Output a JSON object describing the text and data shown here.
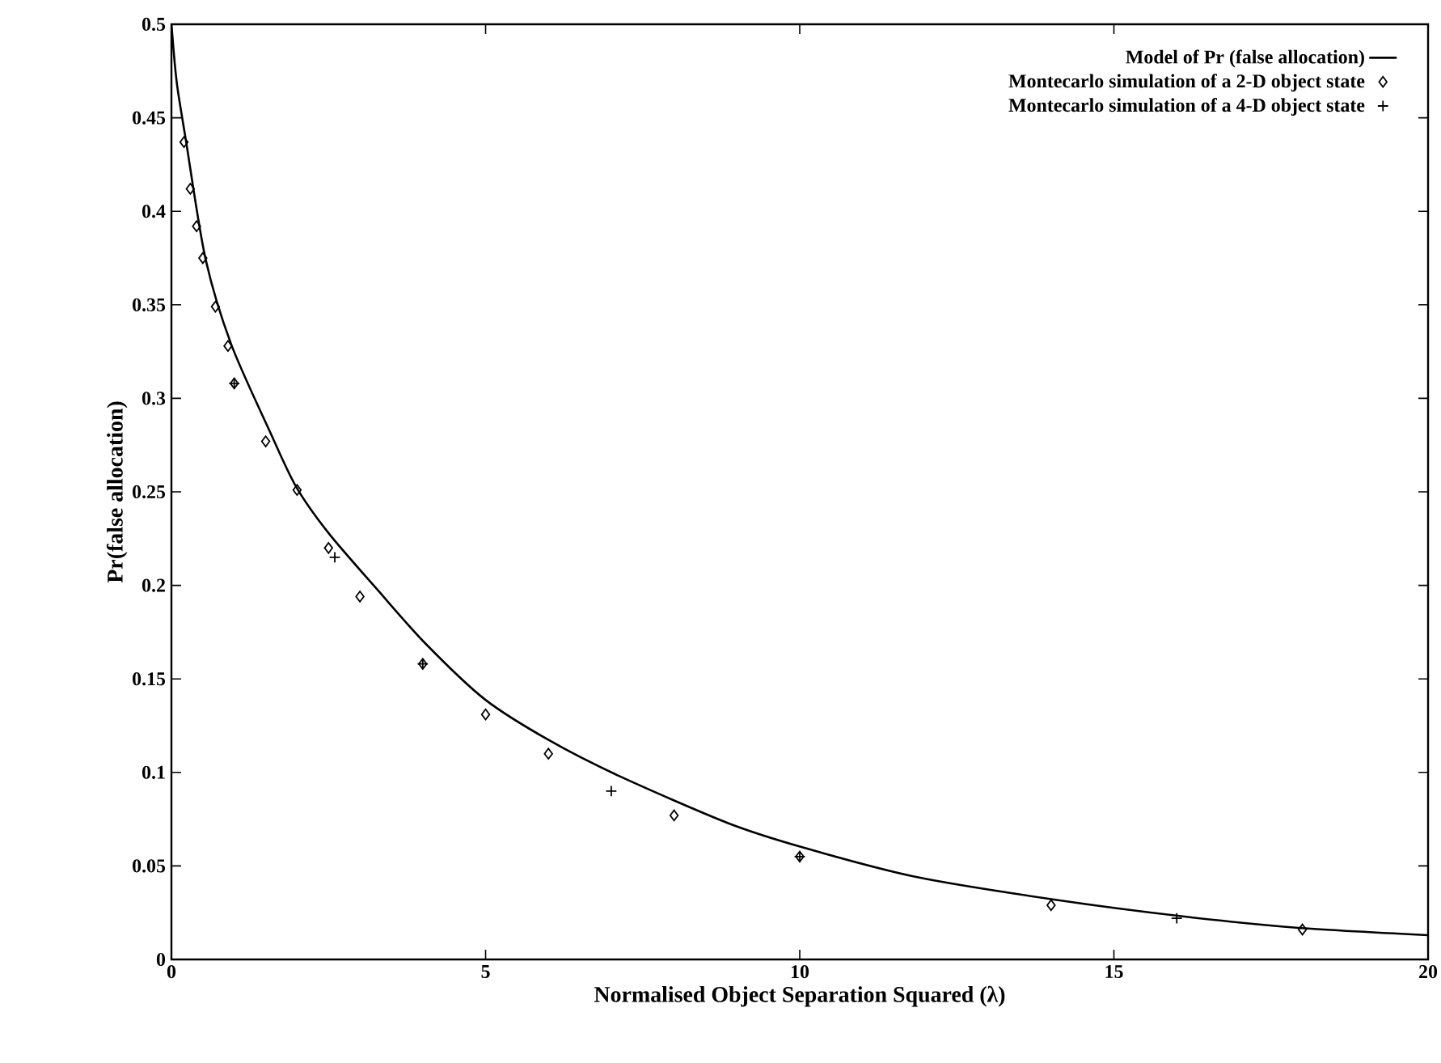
{
  "chart_data": {
    "type": "line",
    "xlabel": "Normalised Object Separation Squared (λ)",
    "ylabel": "Pr(false allocation)",
    "xlim": [
      0,
      20
    ],
    "ylim": [
      0,
      0.5
    ],
    "xticks": [
      0,
      5,
      10,
      15,
      20
    ],
    "yticks": [
      0,
      0.05,
      0.1,
      0.15,
      0.2,
      0.25,
      0.3,
      0.35,
      0.4,
      0.45,
      0.5
    ],
    "legend": "top right",
    "grid": false,
    "series": [
      {
        "name": "Model of Pr (false allocation)",
        "color": "#000000",
        "line_style": "solid",
        "x": [
          0,
          0.05,
          0.1,
          0.23,
          0.54,
          0.95,
          1.57,
          1.98,
          2.5,
          3.27,
          4.04,
          4.99,
          6.02,
          7.13,
          8.85,
          10.04,
          11.87,
          14.05,
          16.1,
          17.9,
          20
        ],
        "values": [
          0.5,
          0.48,
          0.465,
          0.438,
          0.375,
          0.329,
          0.282,
          0.253,
          0.228,
          0.198,
          0.169,
          0.139,
          0.117,
          0.098,
          0.073,
          0.06,
          0.044,
          0.032,
          0.023,
          0.017,
          0.013
        ]
      },
      {
        "name": "Montecarlo simulation of a 2-D object state",
        "type": "scatter",
        "marker": "diamond",
        "color": "#000000",
        "x": [
          0.2,
          0.3,
          0.4,
          0.5,
          0.7,
          0.9,
          1,
          1.5,
          2,
          2.5,
          3,
          4,
          5,
          6,
          8,
          10,
          14,
          18
        ],
        "values": [
          0.437,
          0.412,
          0.392,
          0.375,
          0.349,
          0.328,
          0.308,
          0.277,
          0.251,
          0.22,
          0.194,
          0.158,
          0.131,
          0.11,
          0.077,
          0.055,
          0.029,
          0.016
        ]
      },
      {
        "name": "Montecarlo simulation of a 4-D object state",
        "type": "scatter",
        "marker": "cross",
        "color": "#000000",
        "x": [
          1,
          2.6,
          4,
          7,
          10,
          16
        ],
        "values": [
          0.308,
          0.215,
          0.158,
          0.09,
          0.055,
          0.022
        ]
      }
    ]
  }
}
